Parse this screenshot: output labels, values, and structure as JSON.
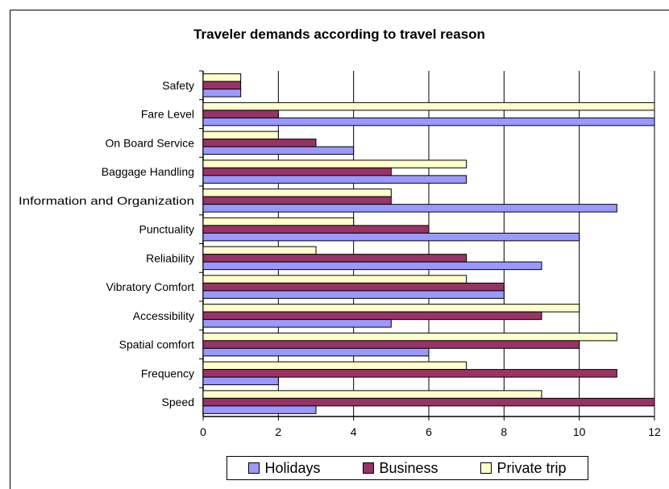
{
  "chart_data": {
    "type": "bar",
    "orientation": "horizontal",
    "title": "Traveler demands according to travel reason",
    "categories": [
      "Safety",
      "Fare Level",
      "On Board Service",
      "Baggage Handling",
      "Information and Organization",
      "Punctuality",
      "Reliability",
      "Vibratory Comfort",
      "Accessibility",
      "Spatial comfort",
      "Frequency",
      "Speed"
    ],
    "series": [
      {
        "name": "Private trip",
        "color": "#ffffcc",
        "values": [
          1,
          12,
          2,
          7,
          5,
          4,
          3,
          7,
          10,
          11,
          7,
          9
        ]
      },
      {
        "name": "Business",
        "color": "#993366",
        "values": [
          1,
          2,
          3,
          5,
          5,
          6,
          7,
          8,
          9,
          10,
          11,
          12
        ]
      },
      {
        "name": "Holidays",
        "color": "#9999ff",
        "values": [
          1,
          12,
          4,
          7,
          11,
          10,
          9,
          8,
          5,
          6,
          2,
          3
        ]
      }
    ],
    "xlim": [
      0,
      12
    ],
    "xticks": [
      "0",
      "2",
      "4",
      "6",
      "8",
      "10",
      "12"
    ],
    "grid": true,
    "legend_position": "bottom",
    "legend": [
      "Holidays",
      "Business",
      "Private trip"
    ]
  }
}
